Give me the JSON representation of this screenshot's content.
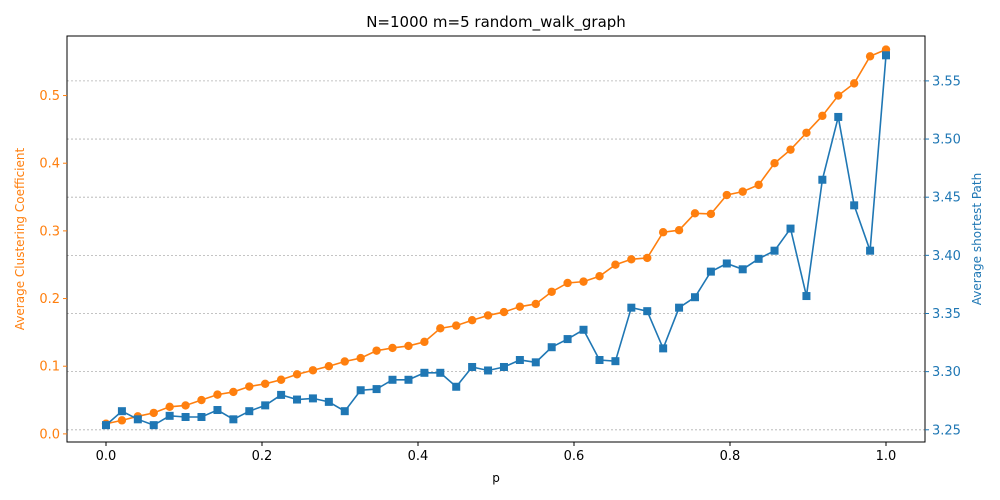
{
  "chart_data": {
    "type": "line",
    "title": "N=1000 m=5 random_walk_graph",
    "xlabel": "p",
    "ylabel_left": "Average Clustering Coefficient",
    "ylabel_right": "Average shortest Path",
    "xlim": [
      -0.05,
      1.05
    ],
    "ylim_left": [
      -0.012,
      0.588
    ],
    "ylim_right": [
      3.2395,
      3.5886
    ],
    "xticks": [
      "0.0",
      "0.2",
      "0.4",
      "0.6",
      "0.8",
      "1.0"
    ],
    "yticks_left": [
      "0.0",
      "0.1",
      "0.2",
      "0.3",
      "0.4",
      "0.5"
    ],
    "yticks_right": [
      "3.25",
      "3.30",
      "3.35",
      "3.40",
      "3.45",
      "3.50",
      "3.55"
    ],
    "grid": "horizontal dashed (right axis)",
    "colors": {
      "clustering": "#ff7f0e",
      "path": "#1f77b4",
      "grid": "#b0b0b0"
    },
    "series": [
      {
        "axis": "left",
        "marker": "circle",
        "color": "#ff7f0e",
        "x": [
          0.0,
          0.0204,
          0.0408,
          0.0612,
          0.0816,
          0.102,
          0.1224,
          0.1429,
          0.1633,
          0.1837,
          0.2041,
          0.2245,
          0.2449,
          0.2653,
          0.2857,
          0.3061,
          0.3265,
          0.3469,
          0.3673,
          0.3878,
          0.4082,
          0.4286,
          0.449,
          0.4694,
          0.4898,
          0.5102,
          0.5306,
          0.551,
          0.5714,
          0.5918,
          0.6122,
          0.6327,
          0.6531,
          0.6735,
          0.6939,
          0.7143,
          0.7347,
          0.7551,
          0.7755,
          0.7959,
          0.8163,
          0.8367,
          0.8571,
          0.8776,
          0.898,
          0.9184,
          0.9388,
          0.9592,
          0.9796,
          1.0
        ],
        "values": [
          0.015,
          0.02,
          0.026,
          0.031,
          0.04,
          0.042,
          0.05,
          0.058,
          0.062,
          0.07,
          0.074,
          0.08,
          0.088,
          0.094,
          0.1,
          0.107,
          0.112,
          0.123,
          0.127,
          0.13,
          0.136,
          0.156,
          0.16,
          0.168,
          0.175,
          0.18,
          0.188,
          0.192,
          0.21,
          0.223,
          0.225,
          0.233,
          0.25,
          0.258,
          0.26,
          0.298,
          0.301,
          0.326,
          0.325,
          0.353,
          0.358,
          0.368,
          0.4,
          0.42,
          0.445,
          0.47,
          0.5,
          0.518,
          0.558,
          0.568
        ]
      },
      {
        "axis": "right",
        "marker": "square",
        "color": "#1f77b4",
        "x": [
          0.0,
          0.0204,
          0.0408,
          0.0612,
          0.0816,
          0.102,
          0.1224,
          0.1429,
          0.1633,
          0.1837,
          0.2041,
          0.2245,
          0.2449,
          0.2653,
          0.2857,
          0.3061,
          0.3265,
          0.3469,
          0.3673,
          0.3878,
          0.4082,
          0.4286,
          0.449,
          0.4694,
          0.4898,
          0.5102,
          0.5306,
          0.551,
          0.5714,
          0.5918,
          0.6122,
          0.6327,
          0.6531,
          0.6735,
          0.6939,
          0.7143,
          0.7347,
          0.7551,
          0.7755,
          0.7959,
          0.8163,
          0.8367,
          0.8571,
          0.8776,
          0.898,
          0.9184,
          0.9388,
          0.9592,
          0.9796,
          1.0
        ],
        "values": [
          3.254,
          3.266,
          3.259,
          3.254,
          3.262,
          3.261,
          3.261,
          3.267,
          3.259,
          3.266,
          3.271,
          3.28,
          3.276,
          3.277,
          3.274,
          3.266,
          3.284,
          3.285,
          3.293,
          3.293,
          3.299,
          3.299,
          3.287,
          3.304,
          3.301,
          3.304,
          3.31,
          3.308,
          3.321,
          3.328,
          3.336,
          3.31,
          3.309,
          3.355,
          3.352,
          3.32,
          3.355,
          3.364,
          3.386,
          3.393,
          3.388,
          3.397,
          3.404,
          3.423,
          3.365,
          3.465,
          3.519,
          3.443,
          3.404,
          3.572
        ]
      }
    ]
  }
}
